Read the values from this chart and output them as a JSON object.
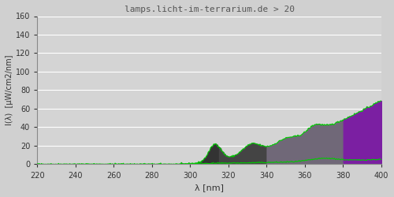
{
  "title": "lamps.licht-im-terrarium.de > 20",
  "xlabel": "λ [nm]",
  "ylabel": "I(λ)  [μW/cm2/nm]",
  "xlim": [
    220,
    400
  ],
  "ylim": [
    0,
    160
  ],
  "xticks": [
    220,
    240,
    260,
    280,
    300,
    320,
    340,
    360,
    380,
    400
  ],
  "yticks": [
    0,
    20,
    40,
    60,
    80,
    100,
    120,
    140,
    160
  ],
  "fig_color": "#d0d0d0",
  "ax_color": "#d4d4d4",
  "grid_color": "#ffffff",
  "title_color": "#555555",
  "line_color": "#00cc00",
  "band1_color": "#333333",
  "band2_color": "#444444",
  "band3_color": "#706878",
  "band4_color": "#7b1fa2"
}
